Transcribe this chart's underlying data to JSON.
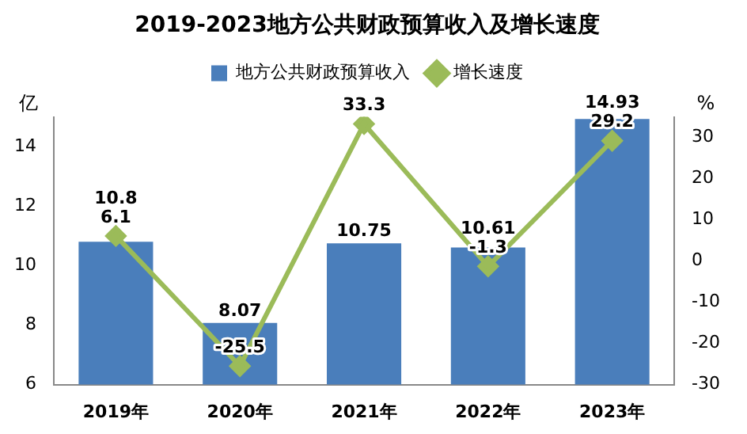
{
  "chart_data": {
    "type": "bar",
    "title": "2019-2023地方公共财政预算收入及增长速度",
    "categories": [
      "2019年",
      "2020年",
      "2021年",
      "2022年",
      "2023年"
    ],
    "ylabel": "亿",
    "y2label": "%",
    "series": [
      {
        "name": "地方公共财政预算收入",
        "color": "#4a7ebb",
        "values": [
          10.8,
          8.07,
          10.75,
          10.61,
          14.93
        ]
      },
      {
        "name": "增长速度",
        "type": "line",
        "axis": "y2",
        "color": "#9bbb59",
        "marker": "diamond",
        "values": [
          6.1,
          -25.5,
          33.3,
          -1.3,
          29.2
        ]
      }
    ],
    "ylim": [
      6,
      15
    ],
    "yticks": [
      6,
      8,
      10,
      12,
      14
    ],
    "y2lim": [
      -30,
      35
    ],
    "y2ticks": [
      -30,
      -20,
      -10,
      0,
      10,
      20,
      30
    ],
    "grid": false,
    "legend": "top",
    "data_labels": true
  }
}
